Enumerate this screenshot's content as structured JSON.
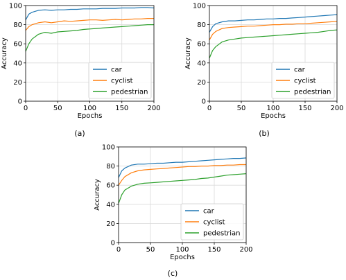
{
  "colors": {
    "car": "#1f77b4",
    "cyclist": "#ff7f0e",
    "pedestrian": "#2ca02c",
    "grid": "#d9d9d9",
    "axis": "#000000"
  },
  "chart_data": [
    {
      "type": "line",
      "caption": "(a)",
      "xlabel": "Epochs",
      "ylabel": "Accuracy",
      "xlim": [
        0,
        200
      ],
      "ylim": [
        0,
        100
      ],
      "xticks": [
        0,
        50,
        100,
        150,
        200
      ],
      "yticks": [
        0,
        20,
        40,
        60,
        80,
        100
      ],
      "grid": true,
      "legend_position": "lower-right",
      "series": [
        {
          "name": "car",
          "color": "#1f77b4",
          "x": [
            0,
            5,
            10,
            20,
            30,
            40,
            50,
            60,
            70,
            80,
            90,
            100,
            110,
            120,
            130,
            140,
            150,
            160,
            170,
            180,
            190,
            200
          ],
          "y": [
            85,
            91,
            93,
            95,
            95.5,
            95,
            95.5,
            95.5,
            96,
            96,
            96.5,
            96.5,
            96.5,
            97,
            97,
            97,
            97.5,
            97.5,
            97.5,
            98,
            98,
            97.5
          ]
        },
        {
          "name": "cyclist",
          "color": "#ff7f0e",
          "x": [
            0,
            5,
            10,
            20,
            30,
            40,
            50,
            60,
            70,
            80,
            90,
            100,
            110,
            120,
            130,
            140,
            150,
            160,
            170,
            180,
            190,
            200
          ],
          "y": [
            74,
            78,
            80,
            82,
            83,
            82,
            83,
            84,
            83.5,
            84,
            84.5,
            85,
            85,
            84.5,
            85,
            85.5,
            85,
            85.5,
            86,
            86,
            86.5,
            86.5
          ]
        },
        {
          "name": "pedestrian",
          "color": "#2ca02c",
          "x": [
            0,
            5,
            10,
            20,
            30,
            40,
            50,
            60,
            70,
            80,
            90,
            100,
            110,
            120,
            130,
            140,
            150,
            160,
            170,
            180,
            190,
            200
          ],
          "y": [
            52,
            60,
            65,
            70,
            72,
            71,
            72.5,
            73,
            73.5,
            74,
            75,
            75.5,
            76,
            76.5,
            77,
            77.5,
            78,
            78.5,
            79,
            79.5,
            80,
            80
          ]
        }
      ]
    },
    {
      "type": "line",
      "caption": "(b)",
      "xlabel": "Epochs",
      "ylabel": "Accuracy",
      "xlim": [
        0,
        200
      ],
      "ylim": [
        0,
        100
      ],
      "xticks": [
        0,
        50,
        100,
        150,
        200
      ],
      "yticks": [
        0,
        20,
        40,
        60,
        80,
        100
      ],
      "grid": true,
      "legend_position": "lower-right",
      "series": [
        {
          "name": "car",
          "color": "#1f77b4",
          "x": [
            0,
            5,
            10,
            20,
            30,
            40,
            50,
            60,
            70,
            80,
            90,
            100,
            110,
            120,
            130,
            140,
            150,
            160,
            170,
            180,
            190,
            200
          ],
          "y": [
            72,
            78,
            81,
            83,
            84,
            84,
            84.5,
            85,
            85,
            85.5,
            86,
            86,
            86.5,
            86.5,
            87,
            87.5,
            88,
            88.5,
            89,
            89.5,
            90,
            90.5
          ]
        },
        {
          "name": "cyclist",
          "color": "#ff7f0e",
          "x": [
            0,
            5,
            10,
            20,
            30,
            40,
            50,
            60,
            70,
            80,
            90,
            100,
            110,
            120,
            130,
            140,
            150,
            160,
            170,
            180,
            190,
            200
          ],
          "y": [
            64,
            70,
            73,
            76,
            77,
            77.5,
            78,
            78.5,
            78.5,
            79,
            79.5,
            80,
            80,
            80.5,
            80.5,
            81,
            81,
            81.5,
            82,
            82.5,
            83,
            83.5
          ]
        },
        {
          "name": "pedestrian",
          "color": "#2ca02c",
          "x": [
            0,
            5,
            10,
            20,
            30,
            40,
            50,
            60,
            70,
            80,
            90,
            100,
            110,
            120,
            130,
            140,
            150,
            160,
            170,
            180,
            190,
            200
          ],
          "y": [
            45,
            53,
            57,
            62,
            64,
            65,
            66,
            66.5,
            67,
            67.5,
            68,
            68.5,
            69,
            69.5,
            70,
            70.5,
            71,
            71.5,
            72,
            73,
            74,
            74.5
          ]
        }
      ]
    },
    {
      "type": "line",
      "caption": "(c)",
      "xlabel": "Epochs",
      "ylabel": "Accuracy",
      "xlim": [
        0,
        200
      ],
      "ylim": [
        0,
        100
      ],
      "xticks": [
        0,
        50,
        100,
        150,
        200
      ],
      "yticks": [
        0,
        20,
        40,
        60,
        80,
        100
      ],
      "grid": true,
      "legend_position": "lower-right",
      "series": [
        {
          "name": "car",
          "color": "#1f77b4",
          "x": [
            0,
            5,
            10,
            20,
            30,
            40,
            50,
            60,
            70,
            80,
            90,
            100,
            110,
            120,
            130,
            140,
            150,
            160,
            170,
            180,
            190,
            200
          ],
          "y": [
            68,
            75,
            78,
            81,
            82,
            82,
            82.5,
            83,
            83,
            83.5,
            84,
            84,
            84.5,
            85,
            85.5,
            86,
            86.5,
            87,
            87.5,
            88,
            88,
            88.5
          ]
        },
        {
          "name": "cyclist",
          "color": "#ff7f0e",
          "x": [
            0,
            5,
            10,
            20,
            30,
            40,
            50,
            60,
            70,
            80,
            90,
            100,
            110,
            120,
            130,
            140,
            150,
            160,
            170,
            180,
            190,
            200
          ],
          "y": [
            60,
            65,
            69,
            73,
            75,
            76,
            76.5,
            77,
            77.5,
            78,
            78.5,
            79,
            79.5,
            79.5,
            80,
            80,
            80.5,
            80.5,
            81,
            81,
            81.5,
            81.5
          ]
        },
        {
          "name": "pedestrian",
          "color": "#2ca02c",
          "x": [
            0,
            5,
            10,
            20,
            30,
            40,
            50,
            60,
            70,
            80,
            90,
            100,
            110,
            120,
            130,
            140,
            150,
            160,
            170,
            180,
            190,
            200
          ],
          "y": [
            41,
            50,
            55,
            59,
            61,
            62,
            62.5,
            63,
            63.5,
            64,
            64.5,
            65,
            65.5,
            66,
            67,
            67.5,
            68.5,
            69.5,
            70.5,
            71,
            71.5,
            72
          ]
        }
      ]
    }
  ]
}
